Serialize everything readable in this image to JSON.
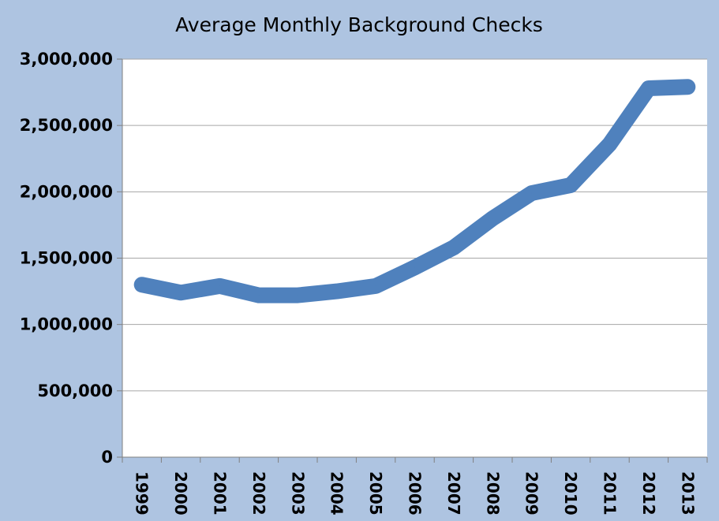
{
  "chart_data": {
    "type": "line",
    "title": "Average Monthly Background Checks",
    "xlabel": "",
    "ylabel": "",
    "categories": [
      "1999",
      "2000",
      "2001",
      "2002",
      "2003",
      "2004",
      "2005",
      "2006",
      "2007",
      "2008",
      "2009",
      "2010",
      "2011",
      "2012",
      "2013"
    ],
    "series": [
      {
        "values": [
          1300000,
          1240000,
          1290000,
          1220000,
          1220000,
          1250000,
          1290000,
          1430000,
          1580000,
          1800000,
          1990000,
          2050000,
          2360000,
          2780000,
          2790000
        ]
      }
    ],
    "ylim": [
      0,
      3000000
    ],
    "yticks": [
      "0",
      "500,000",
      "1,000,000",
      "1,500,000",
      "2,000,000",
      "2,500,000",
      "3,000,000"
    ],
    "grid": "horizontal",
    "legend": "none",
    "colors": {
      "background": "#aec4e1",
      "plot_area": "#ffffff",
      "line": "#4f81bd",
      "gridline": "#a6a6a6"
    }
  }
}
